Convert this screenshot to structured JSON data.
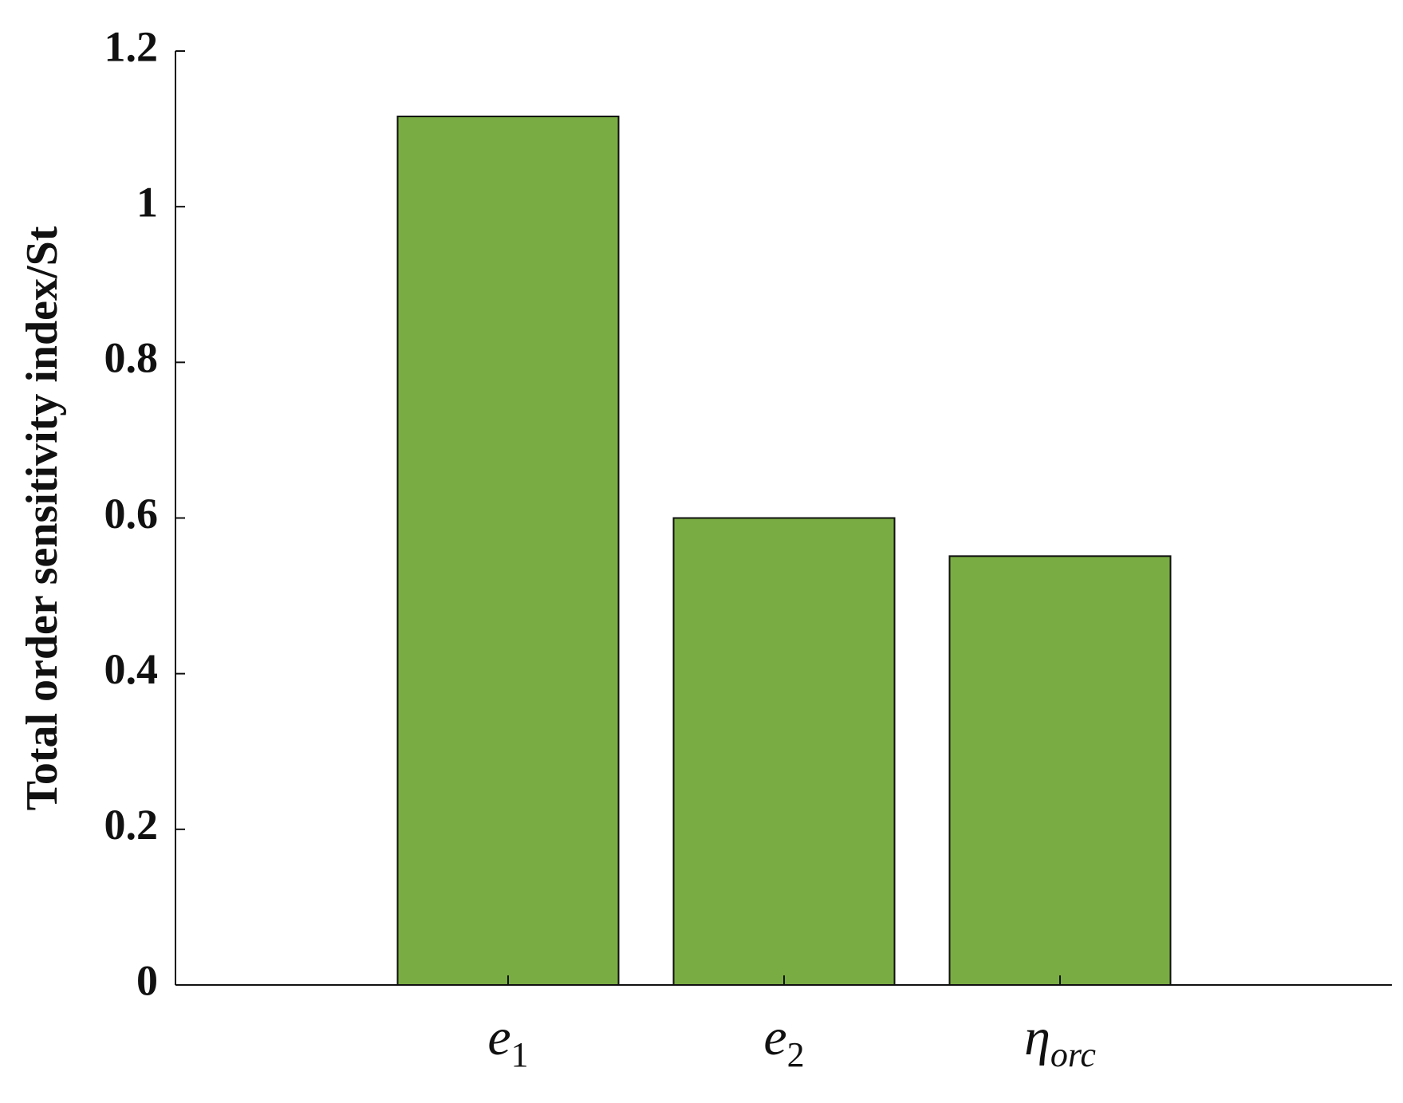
{
  "chart_data": {
    "type": "bar",
    "y_label": "Total order sensitivity index/St",
    "categories": [
      "e1",
      "e2",
      "ηorc"
    ],
    "values": [
      1.116,
      0.6,
      0.551
    ],
    "color": "#79ac42",
    "ylim": [
      0,
      1.2
    ],
    "yticks": [
      0,
      0.2,
      0.4,
      0.6,
      0.8,
      1,
      1.2
    ]
  }
}
